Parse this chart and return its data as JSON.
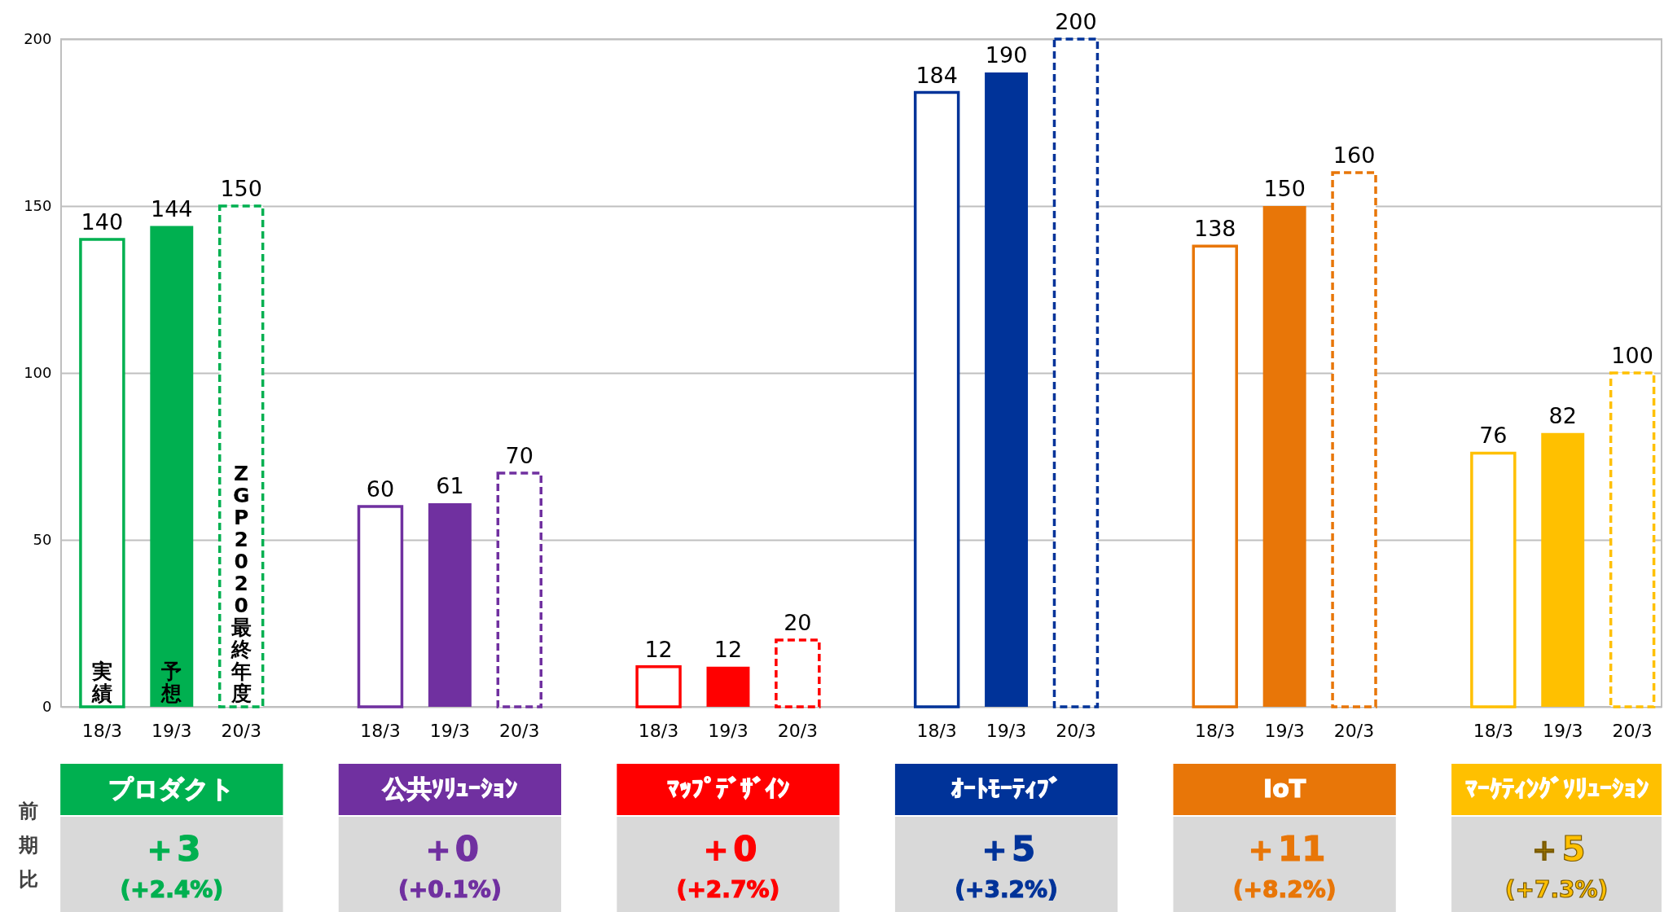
{
  "chart_data": {
    "type": "bar",
    "categories": [
      "18/3",
      "19/3",
      "20/3",
      "18/3",
      "19/3",
      "20/3",
      "18/3",
      "19/3",
      "20/3",
      "18/3",
      "19/3",
      "20/3",
      "18/3",
      "19/3",
      "20/3",
      "18/3",
      "19/3",
      "20/3"
    ],
    "series": [
      {
        "line_style": "solid",
        "values": [
          140,
          null,
          null,
          60,
          null,
          null,
          12,
          null,
          null,
          184,
          null,
          null,
          138,
          null,
          null,
          76,
          null,
          null
        ],
        "colors": [
          "#00b050",
          null,
          null,
          "#7030a0",
          null,
          null,
          "#ff0000",
          null,
          null,
          "#003399",
          null,
          null,
          "#e87608",
          null,
          null,
          "#ffc000",
          null,
          null
        ]
      },
      {
        "values": [
          null,
          144,
          null,
          null,
          61,
          null,
          null,
          12,
          null,
          null,
          190,
          null,
          null,
          150,
          null,
          null,
          82,
          null
        ],
        "colors": [
          null,
          "#00b050",
          null,
          null,
          "#7030a0",
          null,
          null,
          "#ff0000",
          null,
          null,
          "#003399",
          null,
          null,
          "#e87608",
          null,
          null,
          "#ffc000",
          null
        ]
      },
      {
        "line_style": "dashed",
        "values": [
          null,
          null,
          150,
          null,
          null,
          70,
          null,
          null,
          20,
          null,
          null,
          200,
          null,
          null,
          160,
          null,
          null,
          100
        ],
        "colors": [
          null,
          null,
          "#00b050",
          null,
          null,
          "#7030a0",
          null,
          null,
          "#ff0000",
          null,
          null,
          "#003399",
          null,
          null,
          "#e87608",
          null,
          null,
          "#ffc000"
        ]
      }
    ],
    "ylim": [
      0,
      200
    ],
    "yticks": [
      0,
      50,
      100,
      150,
      200
    ],
    "grid": "y",
    "data_labels": true,
    "annotations": [
      "実績",
      "予想",
      "ZGP2020最終年度",
      "前期比",
      "プロダクト",
      "＋3",
      "(+2.4%)",
      "公共ｿﾘｭｰｼｮﾝ",
      "＋0",
      "(+0.1%)",
      "ﾏｯﾌﾟﾃﾞｻﾞｲﾝ",
      "＋0",
      "(+2.7%)",
      "ｵｰﾄﾓｰﾃｨﾌﾞ",
      "＋5",
      "(+3.2%)",
      "IoT",
      "＋11",
      "(+8.2%)",
      "ﾏｰｹﾃｨﾝｸﾞｿﾘｭｰｼｮﾝ",
      "＋5",
      "(+7.3%)"
    ]
  }
}
